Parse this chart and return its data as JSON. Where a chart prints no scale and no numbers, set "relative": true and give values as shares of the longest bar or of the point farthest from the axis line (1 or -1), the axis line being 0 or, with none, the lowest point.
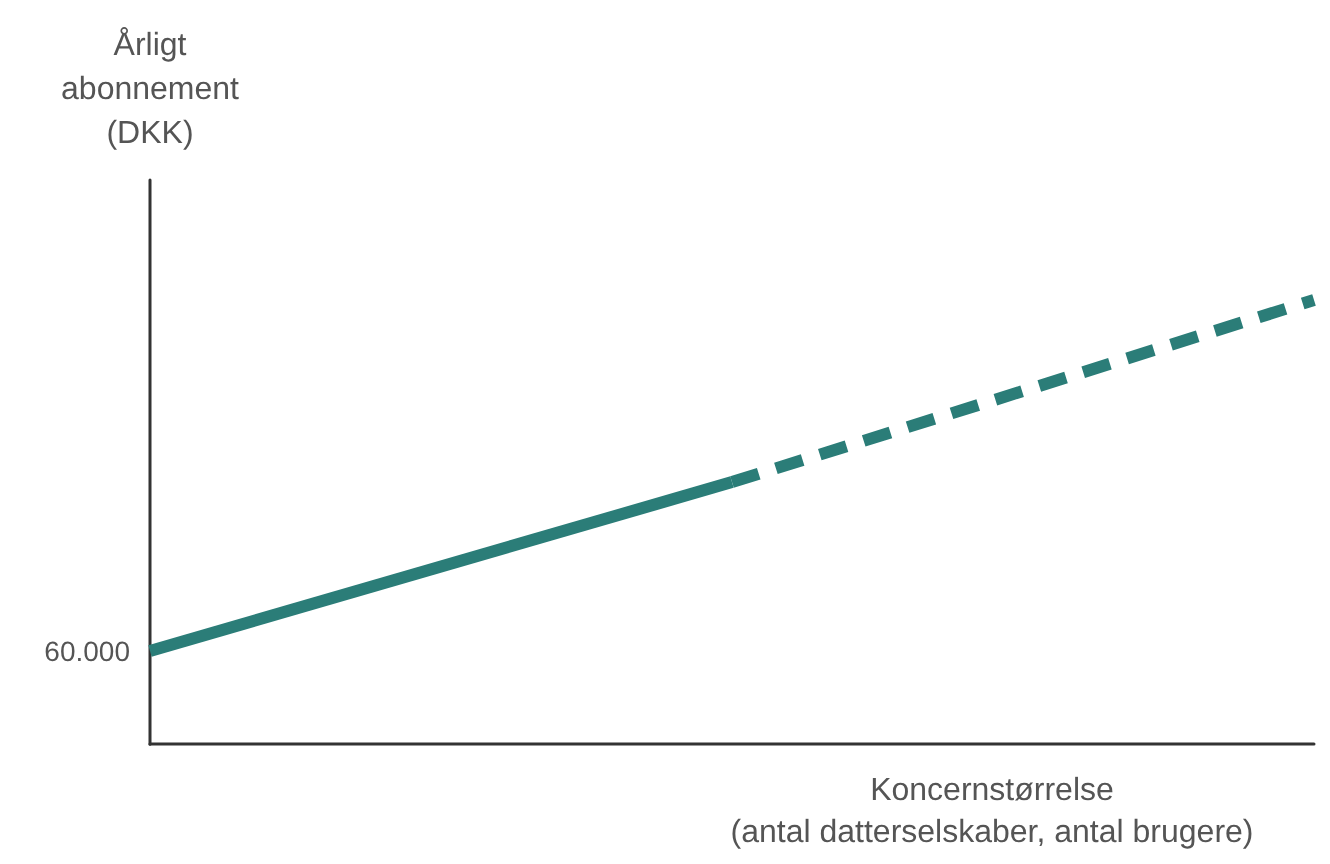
{
  "chart_data": {
    "type": "line",
    "relative": true,
    "ylabel": "Årligt abonnement (DKK)",
    "xlabel": "Koncernstørrelse (antal datterselskaber, antal brugere)",
    "categories": [
      null,
      null,
      null
    ],
    "series": [
      {
        "color": "#2b7d78",
        "line_style": "solid",
        "values": [
          0.21,
          0.59,
          null
        ]
      },
      {
        "color": "#2b7d78",
        "line_style": "dashed",
        "values": [
          null,
          0.59,
          1
        ]
      }
    ],
    "annotations": [
      "60.000"
    ],
    "marker": "none"
  }
}
